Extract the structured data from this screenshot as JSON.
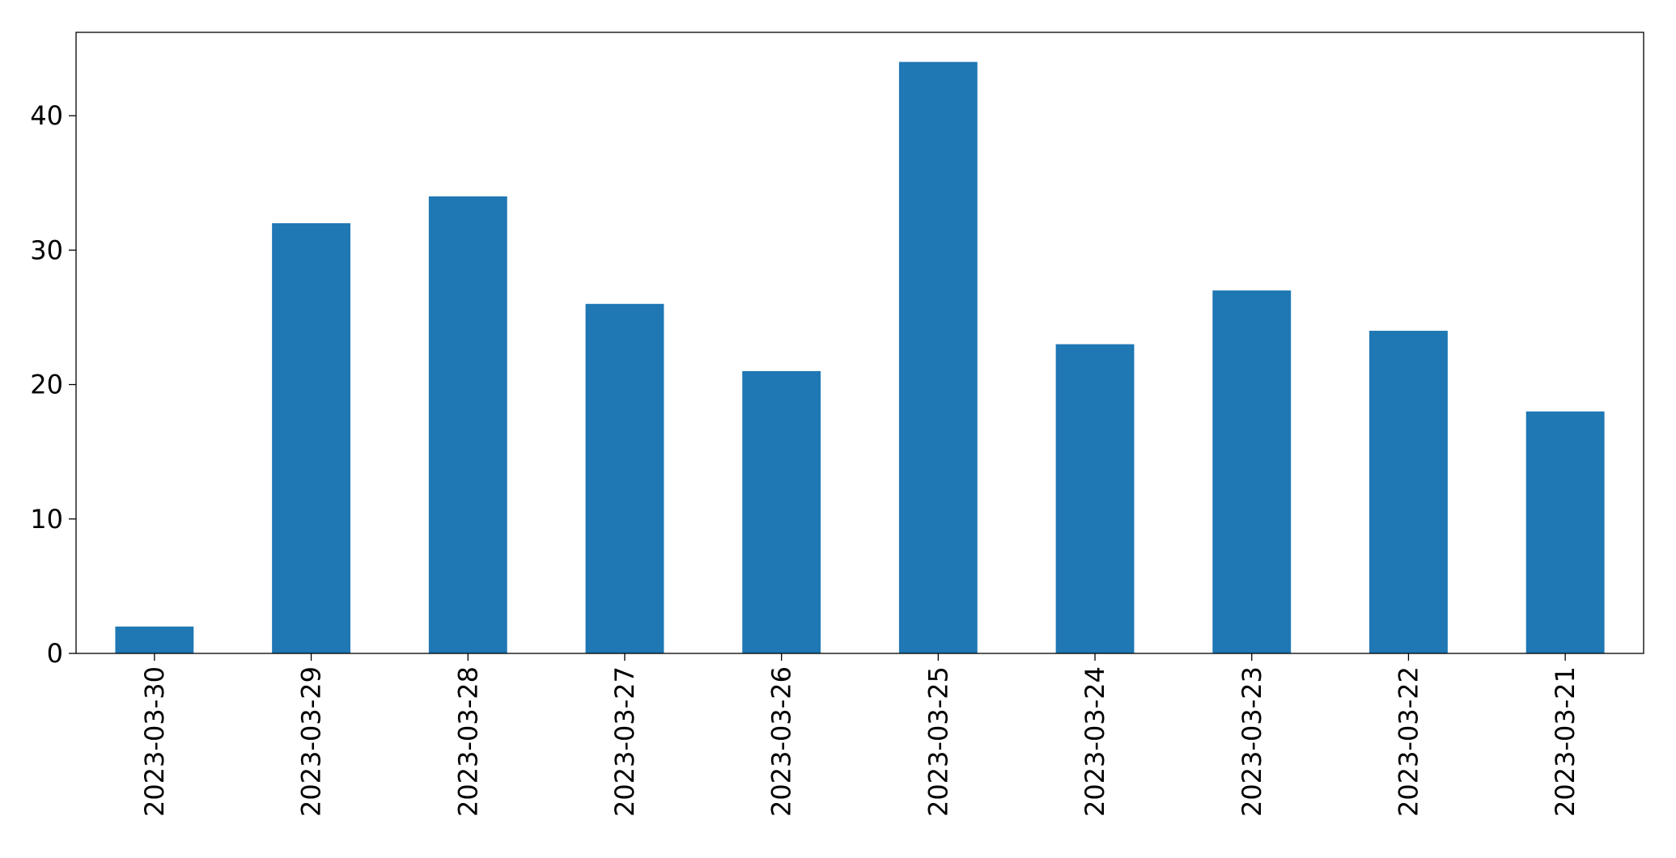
{
  "chart_data": {
    "type": "bar",
    "categories": [
      "2023-03-30",
      "2023-03-29",
      "2023-03-28",
      "2023-03-27",
      "2023-03-26",
      "2023-03-25",
      "2023-03-24",
      "2023-03-23",
      "2023-03-22",
      "2023-03-21"
    ],
    "values": [
      2,
      32,
      34,
      26,
      21,
      44,
      23,
      27,
      24,
      18
    ],
    "color": "#1f77b4",
    "ylim": [
      0,
      46.2
    ],
    "yticks": [
      0,
      10,
      20,
      30,
      40
    ],
    "grid": false
  }
}
